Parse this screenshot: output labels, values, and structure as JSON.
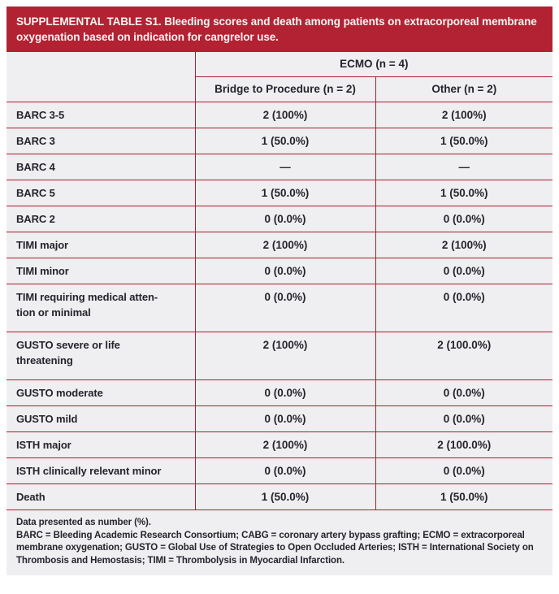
{
  "title": "SUPPLEMENTAL TABLE S1. Bleeding scores and death among patients on extracorporeal membrane oxygenation based on indication for cangrelor use.",
  "table": {
    "group_header": "ECMO (n = 4)",
    "columns": {
      "bridge": "Bridge to Procedure (n = 2)",
      "other": "Other (n = 2)"
    },
    "rows": [
      {
        "label": "BARC 3-5",
        "bridge": "2 (100%)",
        "other": "2 (100%)"
      },
      {
        "label": "BARC 3",
        "bridge": "1 (50.0%)",
        "other": "1 (50.0%)"
      },
      {
        "label": "BARC 4",
        "bridge": "—",
        "other": "—"
      },
      {
        "label": "BARC 5",
        "bridge": "1 (50.0%)",
        "other": "1 (50.0%)"
      },
      {
        "label": "BARC 2",
        "bridge": "0 (0.0%)",
        "other": "0 (0.0%)"
      },
      {
        "label": "TIMI major",
        "bridge": "2 (100%)",
        "other": "2 (100%)"
      },
      {
        "label": "TIMI minor",
        "bridge": "0 (0.0%)",
        "other": "0 (0.0%)"
      },
      {
        "label": "TIMI requiring medical atten-\ntion or minimal",
        "bridge": "0 (0.0%)",
        "other": "0 (0.0%)"
      },
      {
        "label": "GUSTO severe or life\nthreatening",
        "bridge": "2 (100%)",
        "other": "2 (100.0%)"
      },
      {
        "label": "GUSTO moderate",
        "bridge": "0 (0.0%)",
        "other": "0 (0.0%)"
      },
      {
        "label": "GUSTO mild",
        "bridge": "0 (0.0%)",
        "other": "0 (0.0%)"
      },
      {
        "label": "ISTH major",
        "bridge": "2 (100%)",
        "other": "2 (100.0%)"
      },
      {
        "label": "ISTH clinically relevant minor",
        "bridge": "0 (0.0%)",
        "other": "0 (0.0%)"
      },
      {
        "label": "Death",
        "bridge": "1 (50.0%)",
        "other": "1 (50.0%)"
      }
    ]
  },
  "footer": {
    "note1": "Data presented as number (%).",
    "note2": "BARC = Bleeding Academic Research Consortium; CABG = coronary artery bypass grafting; ECMO = extracorporeal membrane oxygenation; GUSTO = Global Use of Strategies to Open Occluded Arteries; ISTH = International Society on Thrombosis and Hemostasis; TIMI = Thrombolysis in Myocardial Infarction."
  },
  "colors": {
    "banner_red": "#B22233",
    "rule_red": "#A8202F",
    "cell_bg": "#EFEEF1",
    "text": "#24252C"
  }
}
